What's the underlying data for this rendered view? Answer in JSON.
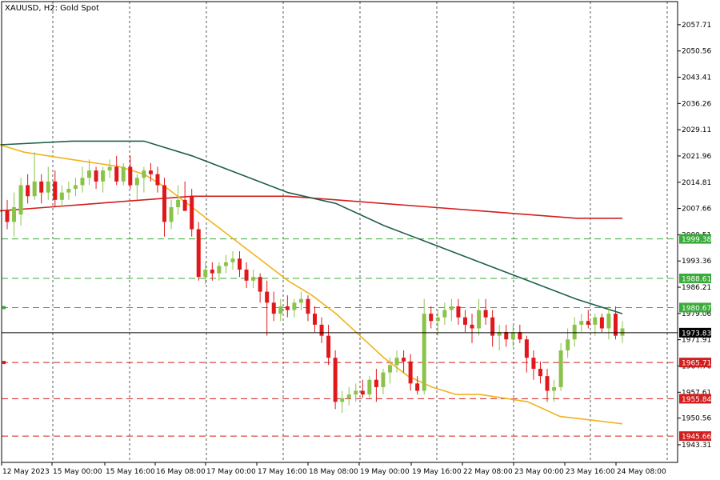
{
  "header": {
    "title": "XAUUSD, H2:  Gold Spot"
  },
  "colors": {
    "bull": "#8bc34a",
    "bear": "#e0171b",
    "ma_fast": "#f0b31c",
    "ma_mid": "#d21e1e",
    "ma_slow": "#1f5e4e",
    "support": "#d21e1e",
    "resistance": "#3aab3a",
    "current": "#000000"
  },
  "chart_data": {
    "type": "candlestick",
    "symbol": "XAUUSD",
    "timeframe": "H2",
    "description": "Gold Spot",
    "ylim": [
      1938.5,
      2064.0
    ],
    "y_ticks": [
      "2057.71",
      "2050.56",
      "2043.41",
      "2036.26",
      "2029.11",
      "2021.96",
      "2014.81",
      "2007.66",
      "2000.51",
      "1993.36",
      "1986.21",
      "1979.06",
      "1971.91",
      "1964.76",
      "1957.61",
      "1950.56",
      "1943.31"
    ],
    "x_labels": [
      "12 May 2023",
      "15 May 00:00",
      "15 May 16:00",
      "16 May 08:00",
      "17 May 00:00",
      "17 May 16:00",
      "18 May 08:00",
      "19 May 00:00",
      "19 May 16:00",
      "22 May 08:00",
      "23 May 00:00",
      "23 May 16:00",
      "24 May 08:00"
    ],
    "current_price": "1973.83",
    "horizontal_levels": [
      {
        "price": "1999.38",
        "type": "resistance"
      },
      {
        "price": "1988.61",
        "type": "resistance"
      },
      {
        "price": "1980.67",
        "type": "resistance"
      },
      {
        "price": "1965.71",
        "type": "support"
      },
      {
        "price": "1955.84",
        "type": "support"
      },
      {
        "price": "1945.66",
        "type": "support"
      }
    ],
    "candles": [
      {
        "o": 2007,
        "h": 2010,
        "l": 2002,
        "c": 2004
      },
      {
        "o": 2004,
        "h": 2012,
        "l": 2000,
        "c": 2008
      },
      {
        "o": 2006,
        "h": 2016,
        "l": 2003,
        "c": 2014
      },
      {
        "o": 2014,
        "h": 2017,
        "l": 2009,
        "c": 2011
      },
      {
        "o": 2011,
        "h": 2023,
        "l": 2010,
        "c": 2015
      },
      {
        "o": 2015,
        "h": 2017,
        "l": 2009,
        "c": 2012
      },
      {
        "o": 2012,
        "h": 2019,
        "l": 2010,
        "c": 2015
      },
      {
        "o": 2015,
        "h": 2018,
        "l": 2008,
        "c": 2010
      },
      {
        "o": 2010,
        "h": 2014,
        "l": 2008,
        "c": 2012
      },
      {
        "o": 2012,
        "h": 2015,
        "l": 2010,
        "c": 2013
      },
      {
        "o": 2013,
        "h": 2016,
        "l": 2011,
        "c": 2014
      },
      {
        "o": 2014,
        "h": 2019,
        "l": 2012,
        "c": 2016
      },
      {
        "o": 2016,
        "h": 2021,
        "l": 2014,
        "c": 2018
      },
      {
        "o": 2018,
        "h": 2019,
        "l": 2013,
        "c": 2015
      },
      {
        "o": 2015,
        "h": 2019,
        "l": 2012,
        "c": 2018
      },
      {
        "o": 2018,
        "h": 2021,
        "l": 2016,
        "c": 2019
      },
      {
        "o": 2019,
        "h": 2022,
        "l": 2014,
        "c": 2015
      },
      {
        "o": 2015,
        "h": 2020,
        "l": 2014,
        "c": 2019
      },
      {
        "o": 2019,
        "h": 2022,
        "l": 2013,
        "c": 2014
      },
      {
        "o": 2014,
        "h": 2017,
        "l": 2010,
        "c": 2016
      },
      {
        "o": 2016,
        "h": 2019,
        "l": 2012,
        "c": 2018
      },
      {
        "o": 2018,
        "h": 2020,
        "l": 2015,
        "c": 2017
      },
      {
        "o": 2017,
        "h": 2019,
        "l": 2012,
        "c": 2014
      },
      {
        "o": 2014,
        "h": 2016,
        "l": 2000,
        "c": 2004
      },
      {
        "o": 2004,
        "h": 2010,
        "l": 2002,
        "c": 2008
      },
      {
        "o": 2008,
        "h": 2014,
        "l": 2006,
        "c": 2010
      },
      {
        "o": 2010,
        "h": 2015,
        "l": 2008,
        "c": 2007
      },
      {
        "o": 2011,
        "h": 2013,
        "l": 2000,
        "c": 2002
      },
      {
        "o": 2002,
        "h": 2004,
        "l": 1988,
        "c": 1989
      },
      {
        "o": 1989,
        "h": 1993,
        "l": 1987,
        "c": 1991
      },
      {
        "o": 1991,
        "h": 1993,
        "l": 1988,
        "c": 1990
      },
      {
        "o": 1990,
        "h": 1993,
        "l": 1988,
        "c": 1992
      },
      {
        "o": 1992,
        "h": 1995,
        "l": 1990,
        "c": 1993
      },
      {
        "o": 1993,
        "h": 1996,
        "l": 1991,
        "c": 1994
      },
      {
        "o": 1994,
        "h": 1996,
        "l": 1989,
        "c": 1991
      },
      {
        "o": 1991,
        "h": 1993,
        "l": 1986,
        "c": 1988
      },
      {
        "o": 1988,
        "h": 1991,
        "l": 1986,
        "c": 1989
      },
      {
        "o": 1989,
        "h": 1990,
        "l": 1982,
        "c": 1985
      },
      {
        "o": 1985,
        "h": 1988,
        "l": 1973,
        "c": 1982
      },
      {
        "o": 1982,
        "h": 1985,
        "l": 1977,
        "c": 1979
      },
      {
        "o": 1979,
        "h": 1983,
        "l": 1977,
        "c": 1981
      },
      {
        "o": 1981,
        "h": 1984,
        "l": 1978,
        "c": 1980
      },
      {
        "o": 1980,
        "h": 1983,
        "l": 1978,
        "c": 1982
      },
      {
        "o": 1982,
        "h": 1985,
        "l": 1980,
        "c": 1983
      },
      {
        "o": 1983,
        "h": 1984,
        "l": 1977,
        "c": 1979
      },
      {
        "o": 1979,
        "h": 1981,
        "l": 1974,
        "c": 1976
      },
      {
        "o": 1976,
        "h": 1978,
        "l": 1971,
        "c": 1973
      },
      {
        "o": 1973,
        "h": 1976,
        "l": 1965,
        "c": 1967
      },
      {
        "o": 1967,
        "h": 1969,
        "l": 1953,
        "c": 1955
      },
      {
        "o": 1955,
        "h": 1958,
        "l": 1952,
        "c": 1956
      },
      {
        "o": 1956,
        "h": 1959,
        "l": 1954,
        "c": 1957
      },
      {
        "o": 1957,
        "h": 1960,
        "l": 1955,
        "c": 1958
      },
      {
        "o": 1958,
        "h": 1961,
        "l": 1956,
        "c": 1957
      },
      {
        "o": 1957,
        "h": 1962,
        "l": 1956,
        "c": 1961
      },
      {
        "o": 1961,
        "h": 1964,
        "l": 1955,
        "c": 1959
      },
      {
        "o": 1959,
        "h": 1964,
        "l": 1957,
        "c": 1963
      },
      {
        "o": 1963,
        "h": 1967,
        "l": 1960,
        "c": 1965
      },
      {
        "o": 1965,
        "h": 1969,
        "l": 1963,
        "c": 1967
      },
      {
        "o": 1967,
        "h": 1969,
        "l": 1963,
        "c": 1966
      },
      {
        "o": 1966,
        "h": 1968,
        "l": 1958,
        "c": 1960
      },
      {
        "o": 1960,
        "h": 1962,
        "l": 1957,
        "c": 1958
      },
      {
        "o": 1958,
        "h": 1983,
        "l": 1957,
        "c": 1979
      },
      {
        "o": 1979,
        "h": 1981,
        "l": 1975,
        "c": 1977
      },
      {
        "o": 1977,
        "h": 1980,
        "l": 1973,
        "c": 1978
      },
      {
        "o": 1978,
        "h": 1982,
        "l": 1976,
        "c": 1980
      },
      {
        "o": 1980,
        "h": 1983,
        "l": 1977,
        "c": 1981
      },
      {
        "o": 1981,
        "h": 1983,
        "l": 1976,
        "c": 1978
      },
      {
        "o": 1978,
        "h": 1980,
        "l": 1974,
        "c": 1976
      },
      {
        "o": 1976,
        "h": 1979,
        "l": 1971,
        "c": 1975
      },
      {
        "o": 1975,
        "h": 1983,
        "l": 1973,
        "c": 1980
      },
      {
        "o": 1980,
        "h": 1983,
        "l": 1976,
        "c": 1978
      },
      {
        "o": 1978,
        "h": 1980,
        "l": 1970,
        "c": 1973
      },
      {
        "o": 1973,
        "h": 1976,
        "l": 1969,
        "c": 1974
      },
      {
        "o": 1974,
        "h": 1976,
        "l": 1970,
        "c": 1972
      },
      {
        "o": 1972,
        "h": 1976,
        "l": 1970,
        "c": 1974
      },
      {
        "o": 1974,
        "h": 1976,
        "l": 1971,
        "c": 1972
      },
      {
        "o": 1972,
        "h": 1973,
        "l": 1963,
        "c": 1967
      },
      {
        "o": 1967,
        "h": 1969,
        "l": 1961,
        "c": 1964
      },
      {
        "o": 1964,
        "h": 1966,
        "l": 1960,
        "c": 1962
      },
      {
        "o": 1962,
        "h": 1964,
        "l": 1955,
        "c": 1958
      },
      {
        "o": 1958,
        "h": 1961,
        "l": 1955,
        "c": 1959
      },
      {
        "o": 1959,
        "h": 1971,
        "l": 1958,
        "c": 1969
      },
      {
        "o": 1969,
        "h": 1975,
        "l": 1967,
        "c": 1972
      },
      {
        "o": 1972,
        "h": 1978,
        "l": 1970,
        "c": 1976
      },
      {
        "o": 1976,
        "h": 1979,
        "l": 1974,
        "c": 1977
      },
      {
        "o": 1977,
        "h": 1980,
        "l": 1975,
        "c": 1976
      },
      {
        "o": 1976,
        "h": 1979,
        "l": 1973,
        "c": 1978
      },
      {
        "o": 1978,
        "h": 1979,
        "l": 1974,
        "c": 1975
      },
      {
        "o": 1975,
        "h": 1981,
        "l": 1972,
        "c": 1979
      },
      {
        "o": 1979,
        "h": 1981,
        "l": 1972,
        "c": 1973
      },
      {
        "o": 1973,
        "h": 1977,
        "l": 1971,
        "c": 1975
      }
    ],
    "ma_fast": [
      [
        0,
        2025
      ],
      [
        30,
        2023
      ],
      [
        60,
        2022
      ],
      [
        90,
        2021
      ],
      [
        120,
        2020
      ],
      [
        150,
        2019
      ],
      [
        180,
        2017
      ],
      [
        210,
        2013
      ],
      [
        240,
        2008
      ],
      [
        270,
        2003
      ],
      [
        300,
        1998
      ],
      [
        330,
        1993
      ],
      [
        360,
        1988
      ],
      [
        390,
        1984
      ],
      [
        420,
        1979
      ],
      [
        450,
        1973
      ],
      [
        480,
        1967
      ],
      [
        510,
        1962
      ],
      [
        540,
        1959
      ],
      [
        570,
        1957
      ],
      [
        600,
        1957
      ],
      [
        630,
        1956
      ],
      [
        660,
        1955
      ],
      [
        700,
        1951
      ],
      [
        740,
        1950
      ],
      [
        778,
        1949
      ]
    ],
    "ma_mid": [
      [
        0,
        2007
      ],
      [
        60,
        2008
      ],
      [
        120,
        2009
      ],
      [
        180,
        2010
      ],
      [
        240,
        2011
      ],
      [
        300,
        2011
      ],
      [
        360,
        2011
      ],
      [
        420,
        2010
      ],
      [
        480,
        2009
      ],
      [
        540,
        2008
      ],
      [
        600,
        2007
      ],
      [
        660,
        2006
      ],
      [
        720,
        2005
      ],
      [
        778,
        2005
      ]
    ],
    "ma_slow": [
      [
        0,
        2025
      ],
      [
        90,
        2026
      ],
      [
        180,
        2026
      ],
      [
        240,
        2022
      ],
      [
        300,
        2017
      ],
      [
        360,
        2012
      ],
      [
        420,
        2009
      ],
      [
        480,
        2003
      ],
      [
        540,
        1998
      ],
      [
        600,
        1993
      ],
      [
        660,
        1988
      ],
      [
        720,
        1983
      ],
      [
        778,
        1979
      ]
    ]
  }
}
